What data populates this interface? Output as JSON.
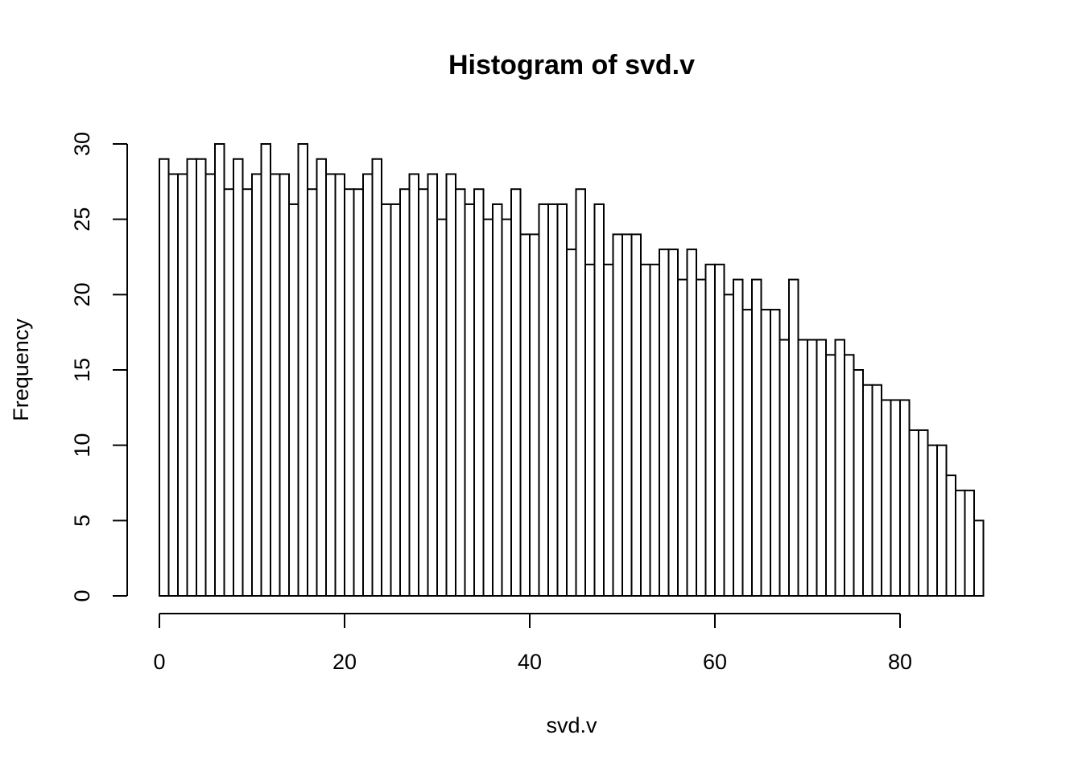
{
  "chart_data": {
    "type": "bar",
    "title": "Histogram of svd.v",
    "xlabel": "svd.v",
    "ylabel": "Frequency",
    "bin_width": 1,
    "x_start": 0,
    "values": [
      29,
      28,
      28,
      29,
      29,
      28,
      30,
      27,
      29,
      27,
      28,
      30,
      28,
      28,
      26,
      30,
      27,
      29,
      28,
      28,
      27,
      27,
      28,
      29,
      26,
      26,
      27,
      28,
      27,
      28,
      25,
      28,
      27,
      26,
      27,
      25,
      26,
      25,
      27,
      24,
      24,
      26,
      26,
      26,
      23,
      27,
      22,
      26,
      22,
      24,
      24,
      24,
      22,
      22,
      23,
      23,
      21,
      23,
      21,
      22,
      22,
      20,
      21,
      19,
      21,
      19,
      19,
      17,
      21,
      17,
      17,
      17,
      16,
      17,
      16,
      15,
      14,
      14,
      13,
      13,
      13,
      11,
      11,
      10,
      10,
      8,
      7,
      7,
      5
    ],
    "xlim": [
      0,
      89
    ],
    "ylim": [
      0,
      30
    ],
    "x_ticks": [
      "0",
      "20",
      "40",
      "60",
      "80"
    ],
    "y_ticks": [
      "0",
      "5",
      "10",
      "15",
      "20",
      "25",
      "30"
    ],
    "grid": false,
    "colors": {
      "bar_fill": "#ffffff",
      "bar_stroke": "#000000"
    }
  }
}
